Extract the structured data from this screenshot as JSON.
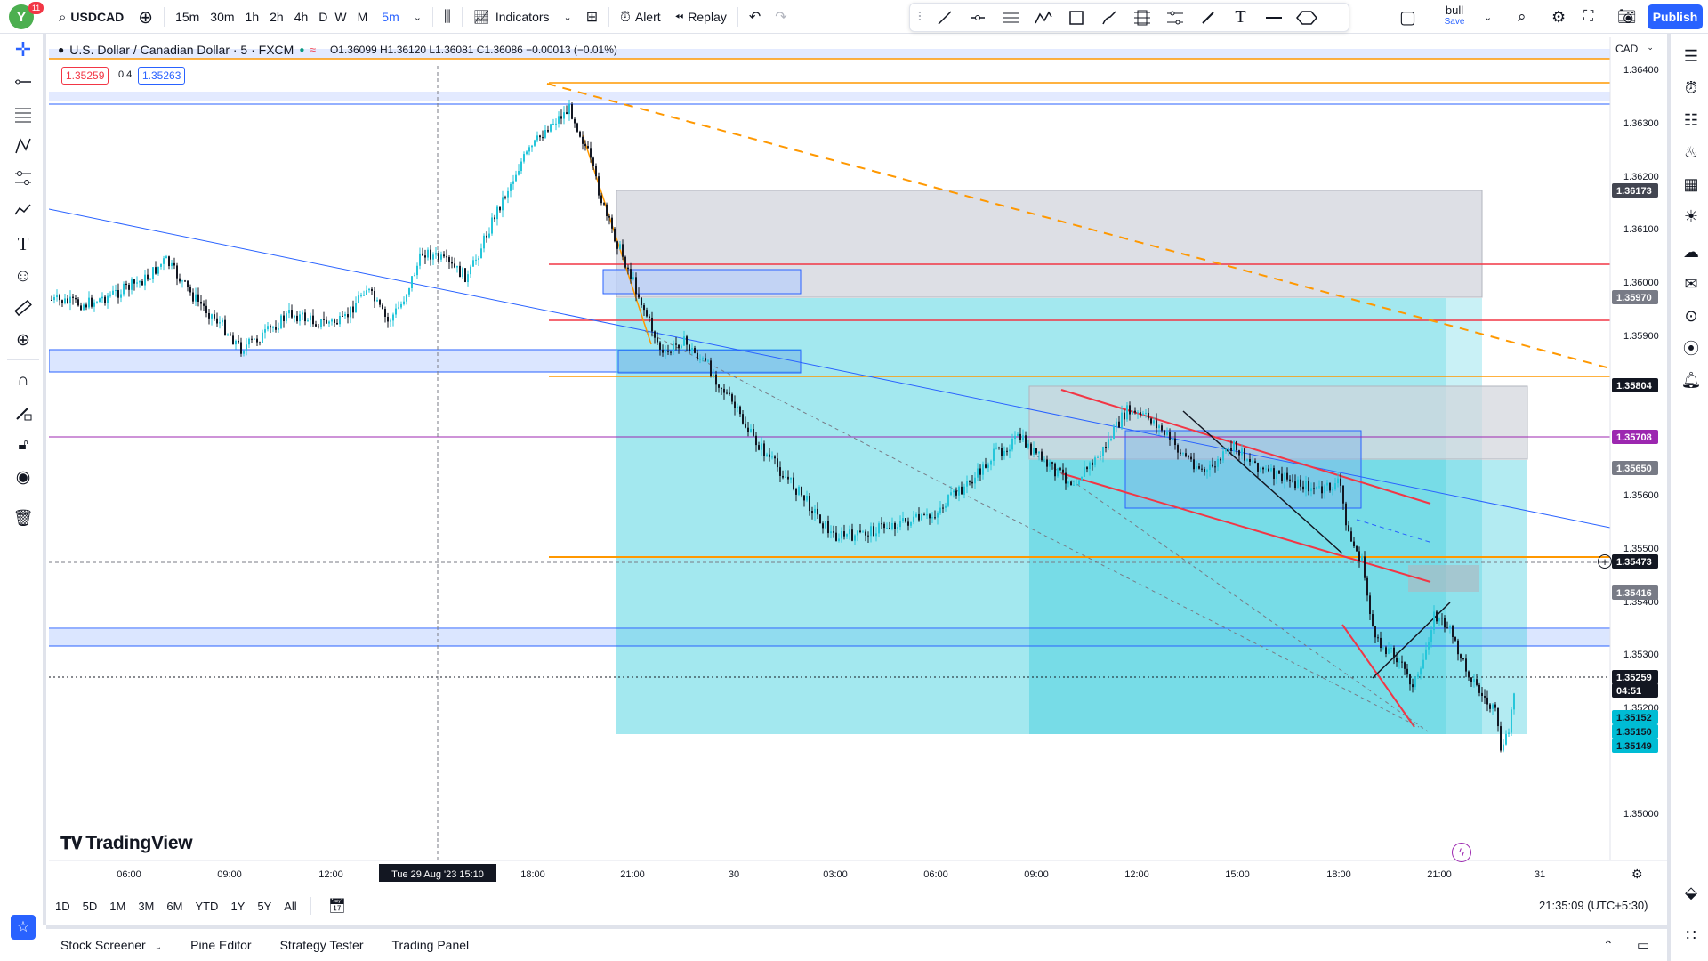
{
  "header": {
    "avatar_letter": "Y",
    "notif_count": "11",
    "symbol": "USDCAD",
    "timeframes": [
      "15m",
      "30m",
      "1h",
      "2h",
      "4h",
      "D",
      "W",
      "M",
      "5m"
    ],
    "indicators_label": "Indicators",
    "alert_label": "Alert",
    "replay_label": "Replay",
    "layout_name": "bull",
    "save_label": "Save",
    "publish_label": "Publish"
  },
  "legend": {
    "title": "U.S. Dollar / Canadian Dollar · 5 · FXCM",
    "ohlc": "O1.36099 H1.36120 L1.36081 C1.36086 −0.00013 (−0.01%)",
    "sell_price": "1.35259",
    "spread": "0.4",
    "buy_price": "1.35263"
  },
  "price_axis": {
    "currency": "CAD",
    "ticks": [
      "1.36400",
      "1.36300",
      "1.36200",
      "1.36100",
      "1.36000",
      "1.35900",
      "1.35600",
      "1.35500",
      "1.35400",
      "1.35300",
      "1.35200",
      "1.35000"
    ],
    "labels": [
      {
        "text": "1.36173",
        "bg": "#434651",
        "color": "#ffffff"
      },
      {
        "text": "1.35970",
        "bg": "#787b86",
        "color": "#ffffff"
      },
      {
        "text": "1.35804",
        "bg": "#131722",
        "color": "#ffffff"
      },
      {
        "text": "1.35708",
        "bg": "#9c27b0",
        "color": "#ffffff"
      },
      {
        "text": "1.35650",
        "bg": "#787b86",
        "color": "#ffffff"
      },
      {
        "text": "1.35473",
        "bg": "#131722",
        "color": "#ffffff"
      },
      {
        "text": "1.35416",
        "bg": "#787b86",
        "color": "#ffffff"
      },
      {
        "text": "1.35259",
        "bg": "#131722",
        "color": "#ffffff"
      },
      {
        "text": "04:51",
        "bg": "#131722",
        "color": "#ffffff"
      },
      {
        "text": "1.35152",
        "bg": "#00bcd4",
        "color": "#131722"
      },
      {
        "text": "1.35150",
        "bg": "#00bcd4",
        "color": "#131722"
      },
      {
        "text": "1.35149",
        "bg": "#00bcd4",
        "color": "#131722"
      }
    ]
  },
  "time_axis": {
    "ticks": [
      "06:00",
      "09:00",
      "12:00",
      "18:00",
      "21:00",
      "30",
      "03:00",
      "06:00",
      "09:00",
      "12:00",
      "15:00",
      "18:00",
      "21:00",
      "31"
    ],
    "crosshair_label": "Tue 29 Aug '23   15:10"
  },
  "ranges": [
    "1D",
    "5D",
    "1M",
    "3M",
    "6M",
    "YTD",
    "1Y",
    "5Y",
    "All"
  ],
  "clock": "21:35:09 (UTC+5:30)",
  "bottom_panel": [
    "Stock Screener",
    "Pine Editor",
    "Strategy Tester",
    "Trading Panel"
  ],
  "brand": "TradingView",
  "colors": {
    "up": "#26c6da",
    "down": "#131722",
    "accent": "#2962ff",
    "orange": "#ff9800",
    "red": "#f23645",
    "purple": "#9c27b0",
    "cyan_zone": "#00bcd4"
  }
}
